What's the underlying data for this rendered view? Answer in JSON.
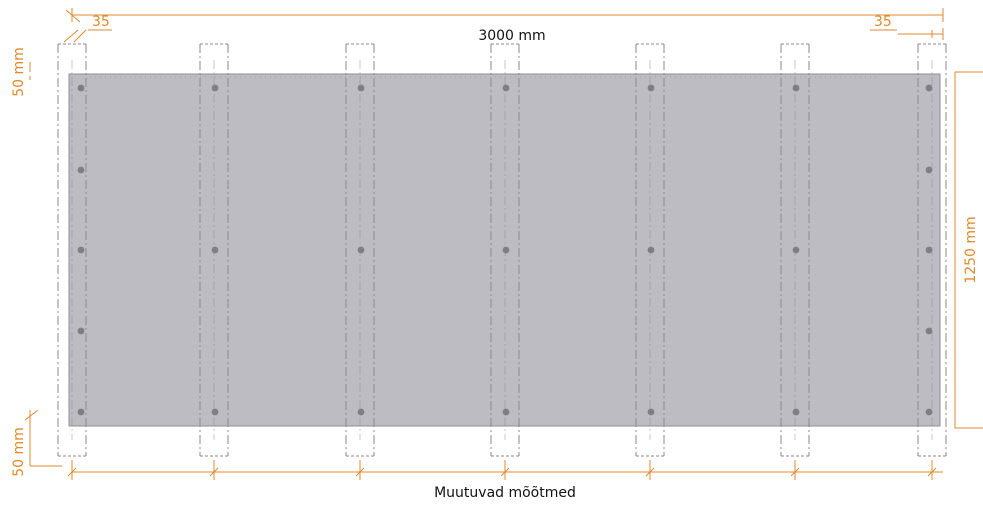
{
  "drawing": {
    "panel_width_label": "3000 mm",
    "panel_height_label": "1250 mm",
    "edge_offset_left": "35",
    "edge_offset_right": "35",
    "screw_margin_top": "50 mm",
    "screw_margin_bottom": "50 mm",
    "variable_spacing_label": "Muutuvad mõõtmed",
    "colors": {
      "panel": "#bdbcc3",
      "dimension": "#e08a2c",
      "stud_outline": "#8a8a8a",
      "screw": "#7e7e86"
    }
  }
}
